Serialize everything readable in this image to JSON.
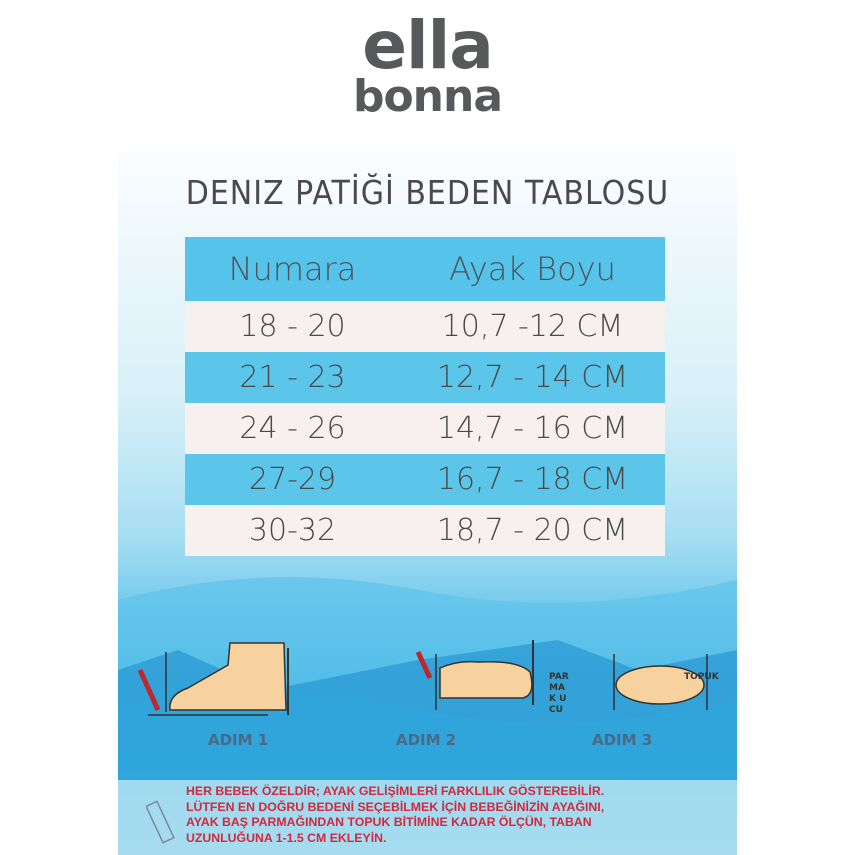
{
  "logo": {
    "line1": "ella",
    "line2": "bonna"
  },
  "title": "DENIZ PATİĞİ BEDEN TABLOSU",
  "table": {
    "headers": [
      "Numara",
      "Ayak Boyu"
    ],
    "rows": [
      [
        "18 - 20",
        "10,7 -12  CM"
      ],
      [
        "21 - 23",
        "12,7 - 14  CM"
      ],
      [
        "24 - 26",
        "14,7 - 16  CM"
      ],
      [
        "27-29",
        "16,7 - 18  CM"
      ],
      [
        "30-32",
        "18,7 - 20  CM"
      ]
    ]
  },
  "steps": [
    "ADIM 1",
    "ADIM 2",
    "ADIM 3"
  ],
  "labels": {
    "toe": "PARMAK UCU",
    "heel": "TOPUK"
  },
  "note": [
    "HER BEBEK ÖZELDİR; AYAK GELİŞİMLERİ FARKLILIK GÖSTEREBİLİR.",
    "LÜTFEN EN DOĞRU BEDENİ SEÇEBİLMEK İÇİN BEBEĞİNİZİN AYAĞINI,",
    "AYAK BAŞ PARMAĞINDAN TOPUK BİTİMİNE KADAR ÖLÇÜN, TABAN",
    "UZUNLUĞUNA 1-1.5 CM EKLEYİN."
  ],
  "colors": {
    "header": "#56c4ea",
    "light_row": "#f6f0ee",
    "note_text": "#d0293d",
    "logo": "#58595b"
  }
}
